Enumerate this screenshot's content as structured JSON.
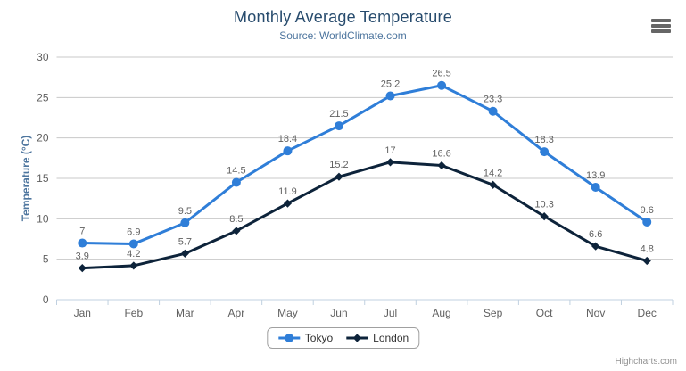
{
  "chart_data": {
    "type": "line",
    "title": "Monthly Average Temperature",
    "subtitle": "Source: WorldClimate.com",
    "xlabel": "",
    "ylabel": "Temperature (°C)",
    "categories": [
      "Jan",
      "Feb",
      "Mar",
      "Apr",
      "May",
      "Jun",
      "Jul",
      "Aug",
      "Sep",
      "Oct",
      "Nov",
      "Dec"
    ],
    "series": [
      {
        "name": "Tokyo",
        "color": "#2f7ed8",
        "marker": "circle",
        "values": [
          7,
          6.9,
          9.5,
          14.5,
          18.4,
          21.5,
          25.2,
          26.5,
          23.3,
          18.3,
          13.9,
          9.6
        ]
      },
      {
        "name": "London",
        "color": "#0d233a",
        "marker": "diamond",
        "values": [
          3.9,
          4.2,
          5.7,
          8.5,
          11.9,
          15.2,
          17,
          16.6,
          14.2,
          10.3,
          6.6,
          4.8
        ]
      }
    ],
    "ylim": [
      0,
      30
    ],
    "yticks": [
      0,
      5,
      10,
      15,
      20,
      25,
      30
    ],
    "grid": true,
    "data_labels": true,
    "legend_position": "bottom-center"
  },
  "credits": {
    "text": "Highcharts.com"
  },
  "icons": {
    "export_menu": "hamburger-icon"
  },
  "colors": {
    "title": "#274b6d",
    "subtitle": "#4d759e",
    "axis_title": "#4d759e",
    "tick_label": "#606060",
    "data_label": "#606060",
    "gridline": "#c8c8c8",
    "axis_line": "#c0d0e0",
    "tick_mark": "#c0d0e0",
    "legend_text": "#333333",
    "legend_border": "#a0a0a0",
    "credits": "#909090",
    "menu_icon": "#666666",
    "background": "#ffffff"
  }
}
